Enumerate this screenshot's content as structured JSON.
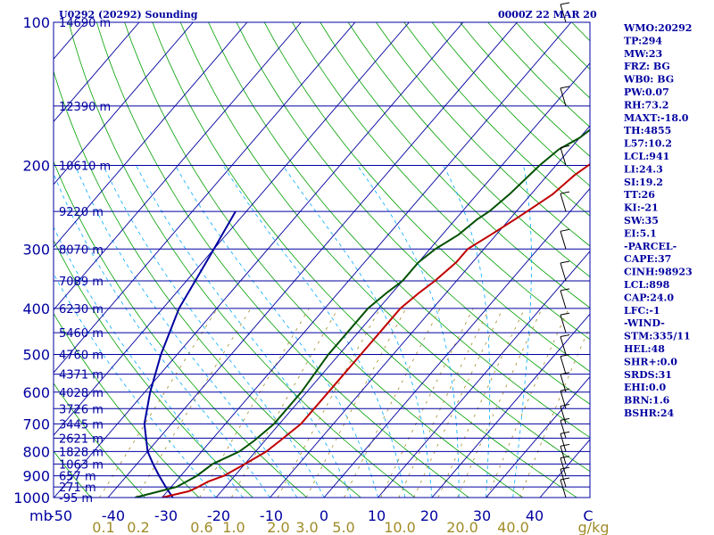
{
  "chart_data": {
    "type": "skew-t log-p sounding",
    "title_left": "U0292 (20292) Sounding",
    "title_right": "0000Z 22 MAR 20",
    "pressure_axis": {
      "range": [
        1000,
        100
      ],
      "log_scale": true,
      "labels": [
        "100",
        "200",
        "300",
        "400",
        "500",
        "600",
        "700",
        "800",
        "900",
        "1000"
      ],
      "unit": "mb"
    },
    "temperature_axis": {
      "range": [
        -50,
        0
      ],
      "ticks": [
        "-50",
        "-40",
        "-30",
        "-20",
        "-10",
        "0",
        "10",
        "20",
        "30",
        "40",
        "C"
      ]
    },
    "mixing_ratio_labels": [
      "0.1",
      "0.2",
      "0.6",
      "1.0",
      "2.0",
      "3.0",
      "5.0",
      "10.0",
      "20.0",
      "40.0",
      "g/kg"
    ],
    "height_labels": [
      {
        "p": 100,
        "label": "14690 m"
      },
      {
        "p": 150,
        "label": "12390 m"
      },
      {
        "p": 200,
        "label": "10610 m"
      },
      {
        "p": 250,
        "label": "9220 m"
      },
      {
        "p": 300,
        "label": "8070 m"
      },
      {
        "p": 350,
        "label": "7089 m"
      },
      {
        "p": 400,
        "label": "6230 m"
      },
      {
        "p": 450,
        "label": "5460 m"
      },
      {
        "p": 500,
        "label": "4760 m"
      },
      {
        "p": 550,
        "label": "4371 m"
      },
      {
        "p": 600,
        "label": "4028 m"
      },
      {
        "p": 650,
        "label": "3726 m"
      },
      {
        "p": 700,
        "label": "3445 m"
      },
      {
        "p": 750,
        "label": "2621 m"
      },
      {
        "p": 800,
        "label": "1828 m"
      },
      {
        "p": 850,
        "label": "1063 m"
      },
      {
        "p": 900,
        "label": "657 m"
      },
      {
        "p": 950,
        "label": "271 m"
      },
      {
        "p": 1000,
        "label": "-95 m"
      }
    ],
    "temperature": [
      [
        1000,
        -30
      ],
      [
        970,
        -26
      ],
      [
        950,
        -25
      ],
      [
        925,
        -24
      ],
      [
        900,
        -22
      ],
      [
        850,
        -20
      ],
      [
        800,
        -18
      ],
      [
        750,
        -17
      ],
      [
        700,
        -16
      ],
      [
        600,
        -16
      ],
      [
        500,
        -16
      ],
      [
        450,
        -16
      ],
      [
        400,
        -16
      ],
      [
        370,
        -15
      ],
      [
        350,
        -14
      ],
      [
        320,
        -13
      ],
      [
        300,
        -13
      ],
      [
        280,
        -11
      ],
      [
        260,
        -9
      ],
      [
        250,
        -8
      ],
      [
        230,
        -6
      ],
      [
        210,
        -5
      ],
      [
        200,
        -4
      ],
      [
        185,
        -2
      ],
      [
        170,
        0
      ],
      [
        165,
        0
      ],
      [
        150,
        0
      ],
      [
        130,
        3
      ],
      [
        120,
        4
      ],
      [
        110,
        6
      ],
      [
        100,
        8
      ]
    ],
    "dewpoint": [
      [
        1000,
        -35
      ],
      [
        975,
        -32
      ],
      [
        950,
        -29
      ],
      [
        925,
        -28
      ],
      [
        900,
        -27
      ],
      [
        850,
        -26
      ],
      [
        800,
        -23
      ],
      [
        760,
        -22
      ],
      [
        700,
        -21
      ],
      [
        600,
        -21
      ],
      [
        500,
        -22
      ],
      [
        450,
        -22
      ],
      [
        400,
        -22
      ],
      [
        370,
        -21
      ],
      [
        350,
        -20
      ],
      [
        320,
        -20
      ],
      [
        300,
        -19
      ],
      [
        280,
        -17
      ],
      [
        260,
        -16
      ],
      [
        250,
        -15
      ],
      [
        230,
        -14
      ],
      [
        200,
        -13
      ],
      [
        185,
        -12
      ],
      [
        175,
        -10
      ],
      [
        165,
        -9
      ],
      [
        150,
        -8
      ],
      [
        140,
        -7
      ],
      [
        130,
        -6
      ],
      [
        120,
        -6
      ],
      [
        110,
        -5
      ],
      [
        100,
        -4
      ]
    ],
    "parcel": [
      [
        1000,
        -28
      ],
      [
        950,
        -31
      ],
      [
        900,
        -34
      ],
      [
        850,
        -37
      ],
      [
        800,
        -40
      ],
      [
        700,
        -45
      ],
      [
        600,
        -49
      ],
      [
        500,
        -53
      ],
      [
        400,
        -57
      ],
      [
        300,
        -60
      ],
      [
        250,
        -62
      ]
    ]
  },
  "indices": [
    "WMO:20292",
    "TP:294",
    "MW:23",
    "FRZ: BG",
    "WB0: BG",
    "PW:0.07",
    "RH:73.2",
    "MAXT:-18.0",
    "TH:4855",
    "L57:10.2",
    "LCL:941",
    "LI:24.3",
    "SI:19.2",
    "TT:26",
    "KI:-21",
    "SW:35",
    "EI:5.1",
    "-PARCEL-",
    "CAPE:37",
    "CINH:98923",
    "LCL:898",
    "CAP:24.0",
    "LFC:-1",
    "-WIND-",
    "STM:335/11",
    "HEL:48",
    "SHR+:0.0",
    "SRDS:31",
    "EHI:0.0",
    "BRN:1.6",
    "BSHR:24"
  ],
  "colors": {
    "axis": "#0000a0",
    "isobar": "#0000a0",
    "isotherm": "#0000a0",
    "dry_adiabat": "#00a000",
    "moist_adiabat": "#00aaff",
    "mixing_ratio": "#a08c28",
    "temperature": "#c00000",
    "dewpoint": "#005000",
    "parcel": "#0000a0",
    "wind": "#000000"
  }
}
